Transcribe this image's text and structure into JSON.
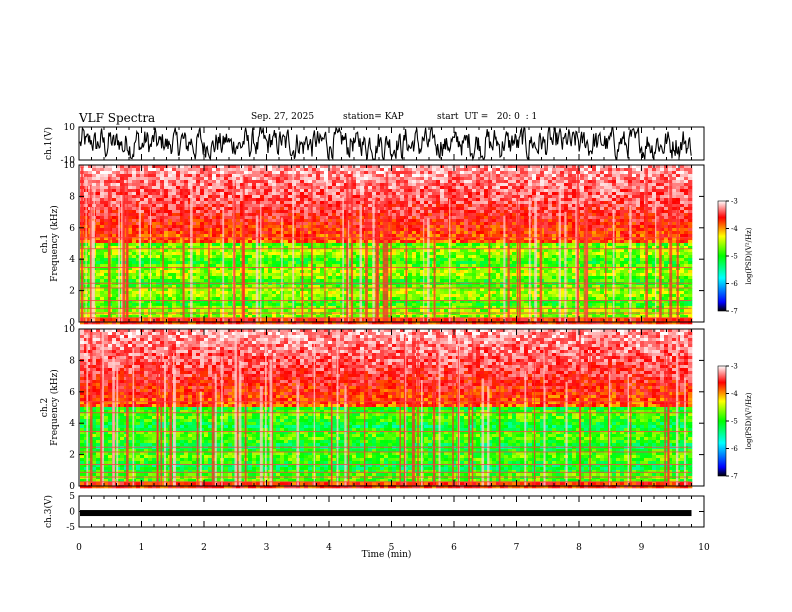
{
  "header": {
    "title": "VLF Spectra",
    "date": "Sep. 27, 2025",
    "station": "station= KAP",
    "start": "start  UT =   20: 0  : 1"
  },
  "chart_data": [
    {
      "type": "line",
      "panel": "ch1-waveform",
      "ylabel": "ch.1(V)",
      "ylim": [
        -10,
        10
      ],
      "yticks": [
        "10",
        "-10"
      ],
      "color": "#000000",
      "description_values": "noisy waveform oscillating between about -10 and +10 V"
    },
    {
      "type": "heatmap",
      "panel": "ch1-spectrogram",
      "ylabel": "ch.1\nFrequency (kHz)",
      "ylabel_lines": [
        "ch.1",
        "Frequency (kHz)"
      ],
      "ylim": [
        0,
        10
      ],
      "yticks": [
        "0",
        "2",
        "4",
        "6",
        "8",
        "10"
      ],
      "colorbar": {
        "label": "log(PSD)(V²/Hz)",
        "range": [
          -7,
          -3
        ],
        "ticks": [
          "-3",
          "-4",
          "-5",
          "-6",
          "-7"
        ]
      }
    },
    {
      "type": "heatmap",
      "panel": "ch2-spectrogram",
      "ylabel_lines": [
        "ch.2",
        "Frequency (kHz)"
      ],
      "ylim": [
        0,
        10
      ],
      "yticks": [
        "0",
        "2",
        "4",
        "6",
        "8",
        "10"
      ],
      "colorbar": {
        "label": "log(PSD)(V²/Hz)",
        "range": [
          -7,
          -3
        ],
        "ticks": [
          "-3",
          "-4",
          "-5",
          "-6",
          "-7"
        ]
      }
    },
    {
      "type": "line",
      "panel": "ch3-waveform",
      "ylabel": "ch.3(V)",
      "ylim": [
        -5,
        5
      ],
      "yticks": [
        "5",
        "0",
        "-5"
      ],
      "level": -0.5,
      "color": "#000000"
    }
  ],
  "x_axis": {
    "xlabel": "Time (min)",
    "xlim": [
      0,
      10
    ],
    "xticks": [
      "0",
      "1",
      "2",
      "3",
      "4",
      "5",
      "6",
      "7",
      "8",
      "9",
      "10"
    ],
    "data_end_min": 9.8
  },
  "colors": {
    "high": "#ff0000",
    "mid": "#00ff00",
    "low": "#0000ff"
  }
}
